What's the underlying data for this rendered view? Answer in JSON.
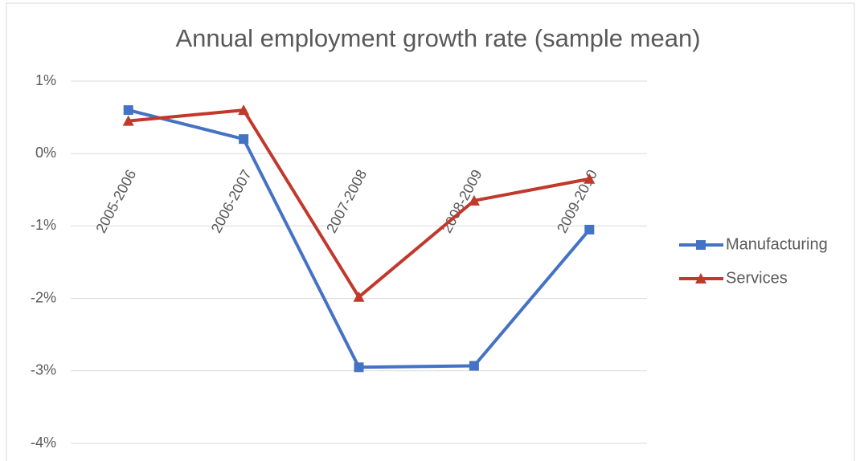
{
  "chart_data": {
    "type": "line",
    "title": "Annual employment growth rate (sample mean)",
    "categories": [
      "2005-2006",
      "2006-2007",
      "2007-2008",
      "2008-2009",
      "2009-2010"
    ],
    "series": [
      {
        "name": "Manufacturing",
        "color": "#4472c4",
        "marker": "square",
        "values": [
          0.6,
          0.2,
          -2.95,
          -2.93,
          -1.05
        ]
      },
      {
        "name": "Services",
        "color": "#c0392b",
        "marker": "triangle",
        "values": [
          0.45,
          0.6,
          -1.98,
          -0.65,
          -0.35
        ]
      }
    ],
    "ylim": [
      -4,
      1
    ],
    "yticks": [
      {
        "value": -4,
        "label": "-4%"
      },
      {
        "value": -3,
        "label": "-3%"
      },
      {
        "value": -2,
        "label": "-2%"
      },
      {
        "value": -1,
        "label": "-1%"
      },
      {
        "value": 0,
        "label": "0%"
      },
      {
        "value": 1,
        "label": "1%"
      }
    ],
    "grid": true,
    "legend": "right"
  }
}
